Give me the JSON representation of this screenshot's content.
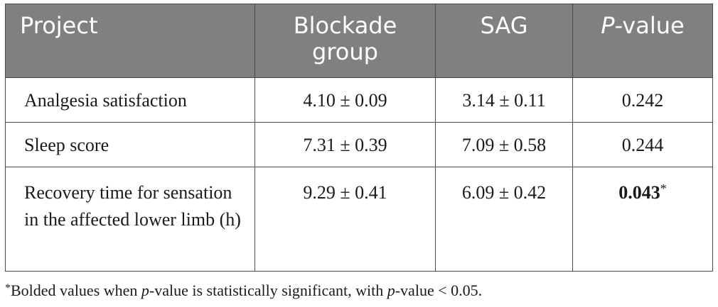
{
  "table": {
    "headers": {
      "project": "Project",
      "blockade": "Blockade group",
      "sag": "SAG",
      "p_letter": "P",
      "p_rest": "-value"
    },
    "rows": [
      {
        "project": "Analgesia satisfaction",
        "blockade": "4.10 ± 0.09",
        "sag": "3.14 ± 0.11",
        "p_value": "0.242",
        "significant": false,
        "marker": ""
      },
      {
        "project": "Sleep score",
        "blockade": "7.31 ± 0.39",
        "sag": "7.09 ± 0.58",
        "p_value": "0.244",
        "significant": false,
        "marker": ""
      },
      {
        "project": "Recovery time for sensation in the affected lower limb (h)",
        "blockade": "9.29 ± 0.41",
        "sag": "6.09 ± 0.42",
        "p_value": "0.043",
        "significant": true,
        "marker": "*"
      }
    ]
  },
  "footnote": {
    "marker": "*",
    "text_1": "Bolded values when ",
    "p1": "p",
    "text_2": "-value is statistically significant, with ",
    "p2": "p",
    "text_3": "-value < 0.05."
  },
  "colors": {
    "header_bg": "#808080",
    "header_text": "#ffffff",
    "border": "#4a4a4a",
    "body_text": "#1a1a1a"
  }
}
